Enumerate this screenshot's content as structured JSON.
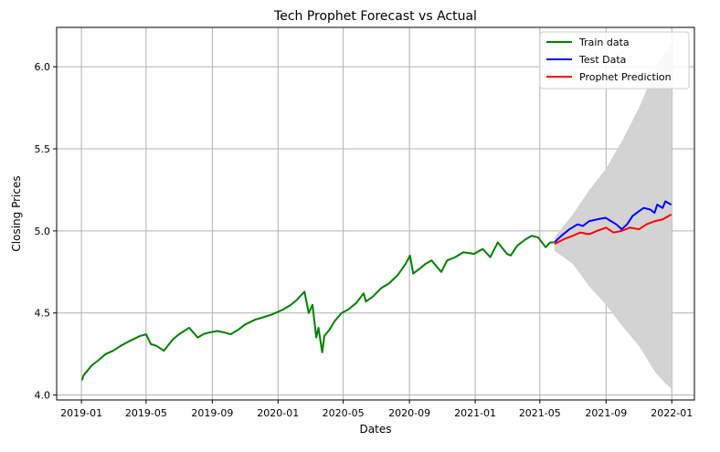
{
  "chart_data": {
    "type": "line",
    "title": "Tech Prophet Forecast vs Actual",
    "xlabel": "Dates",
    "ylabel": "Closing Prices",
    "xlim": [
      "2018-11-16",
      "2022-02-12"
    ],
    "ylim": [
      3.97,
      6.24
    ],
    "grid": true,
    "legend_position": "top-right",
    "x_ticks": [
      "2019-01",
      "2019-05",
      "2019-09",
      "2020-01",
      "2020-05",
      "2020-09",
      "2021-01",
      "2021-05",
      "2021-09",
      "2022-01"
    ],
    "y_ticks": [
      4.0,
      4.5,
      5.0,
      5.5,
      6.0
    ],
    "y_tick_labels": [
      "4.0",
      "4.5",
      "5.0",
      "5.5",
      "6.0"
    ],
    "colors": {
      "train": "#008000",
      "test": "#0000ff",
      "prediction": "#ff0000",
      "interval": "#d3d3d3",
      "grid": "#b0b0b0"
    },
    "series": [
      {
        "name": "Train data",
        "color": "#008000",
        "x": [
          "2019-01-02",
          "2019-01-05",
          "2019-01-10",
          "2019-01-20",
          "2019-02-01",
          "2019-02-15",
          "2019-03-01",
          "2019-03-15",
          "2019-04-01",
          "2019-04-20",
          "2019-05-01",
          "2019-05-10",
          "2019-05-20",
          "2019-06-03",
          "2019-06-20",
          "2019-07-01",
          "2019-07-20",
          "2019-08-05",
          "2019-08-15",
          "2019-08-25",
          "2019-09-10",
          "2019-09-25",
          "2019-10-05",
          "2019-10-20",
          "2019-11-01",
          "2019-11-20",
          "2019-12-01",
          "2019-12-20",
          "2020-01-10",
          "2020-01-25",
          "2020-02-05",
          "2020-02-19",
          "2020-02-27",
          "2020-03-05",
          "2020-03-12",
          "2020-03-16",
          "2020-03-23",
          "2020-03-27",
          "2020-04-06",
          "2020-04-15",
          "2020-04-28",
          "2020-05-10",
          "2020-05-25",
          "2020-06-08",
          "2020-06-12",
          "2020-06-25",
          "2020-07-10",
          "2020-07-25",
          "2020-08-10",
          "2020-08-25",
          "2020-09-02",
          "2020-09-08",
          "2020-09-20",
          "2020-10-01",
          "2020-10-12",
          "2020-10-30",
          "2020-11-10",
          "2020-11-25",
          "2020-12-10",
          "2020-12-30",
          "2021-01-15",
          "2021-01-29",
          "2021-02-12",
          "2021-03-01",
          "2021-03-08",
          "2021-03-20",
          "2021-04-05",
          "2021-04-16",
          "2021-04-28",
          "2021-05-12",
          "2021-05-20",
          "2021-05-27"
        ],
        "values": [
          4.09,
          4.12,
          4.14,
          4.18,
          4.21,
          4.25,
          4.27,
          4.3,
          4.33,
          4.36,
          4.37,
          4.31,
          4.3,
          4.27,
          4.34,
          4.37,
          4.41,
          4.35,
          4.37,
          4.38,
          4.39,
          4.38,
          4.37,
          4.4,
          4.43,
          4.46,
          4.47,
          4.49,
          4.52,
          4.55,
          4.58,
          4.63,
          4.5,
          4.55,
          4.35,
          4.41,
          4.26,
          4.36,
          4.4,
          4.45,
          4.5,
          4.52,
          4.56,
          4.62,
          4.57,
          4.6,
          4.65,
          4.68,
          4.73,
          4.8,
          4.85,
          4.74,
          4.77,
          4.8,
          4.82,
          4.75,
          4.82,
          4.84,
          4.87,
          4.86,
          4.89,
          4.84,
          4.93,
          4.86,
          4.85,
          4.91,
          4.95,
          4.97,
          4.96,
          4.9,
          4.93,
          4.93
        ]
      },
      {
        "name": "Test Data",
        "color": "#0000ff",
        "x": [
          "2021-05-28",
          "2021-06-10",
          "2021-06-25",
          "2021-07-10",
          "2021-07-20",
          "2021-08-01",
          "2021-08-15",
          "2021-08-31",
          "2021-09-10",
          "2021-09-20",
          "2021-09-30",
          "2021-10-10",
          "2021-10-20",
          "2021-11-01",
          "2021-11-10",
          "2021-11-22",
          "2021-11-30",
          "2021-12-05",
          "2021-12-15",
          "2021-12-20",
          "2021-12-31"
        ],
        "values": [
          4.93,
          4.97,
          5.01,
          5.04,
          5.03,
          5.06,
          5.07,
          5.08,
          5.06,
          5.04,
          5.01,
          5.04,
          5.09,
          5.12,
          5.14,
          5.13,
          5.11,
          5.16,
          5.14,
          5.18,
          5.16
        ]
      },
      {
        "name": "Prophet Prediction",
        "color": "#ff0000",
        "x": [
          "2021-05-28",
          "2021-06-15",
          "2021-07-01",
          "2021-07-15",
          "2021-08-01",
          "2021-08-15",
          "2021-09-01",
          "2021-09-15",
          "2021-09-30",
          "2021-10-15",
          "2021-11-01",
          "2021-11-15",
          "2021-12-01",
          "2021-12-15",
          "2021-12-31"
        ],
        "values": [
          4.92,
          4.95,
          4.97,
          4.99,
          4.98,
          5.0,
          5.02,
          4.99,
          5.0,
          5.02,
          5.01,
          5.04,
          5.06,
          5.07,
          5.1
        ]
      }
    ],
    "confidence_interval": {
      "x": [
        "2021-05-28",
        "2021-07-01",
        "2021-08-01",
        "2021-09-01",
        "2021-10-01",
        "2021-11-01",
        "2021-12-01",
        "2021-12-20",
        "2021-12-31"
      ],
      "upper": [
        4.96,
        5.1,
        5.25,
        5.38,
        5.55,
        5.75,
        5.98,
        6.1,
        6.14
      ],
      "lower": [
        4.88,
        4.8,
        4.66,
        4.55,
        4.42,
        4.3,
        4.14,
        4.07,
        4.04
      ]
    }
  }
}
